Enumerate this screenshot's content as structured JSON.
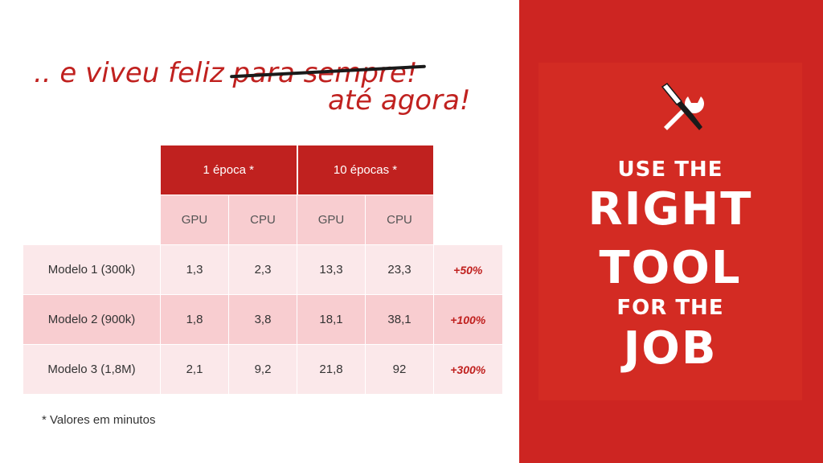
{
  "title": {
    "prefix": ".. e viveu feliz ",
    "struck": "para sempre!",
    "line2": "até agora!"
  },
  "table": {
    "header_groups": [
      "1 época *",
      "10 épocas *"
    ],
    "subheaders": [
      "GPU",
      "CPU",
      "GPU",
      "CPU"
    ],
    "rows": [
      {
        "label": "Modelo 1 (300k)",
        "values": [
          "1,3",
          "2,3",
          "13,3",
          "23,3"
        ],
        "increase": "+50%"
      },
      {
        "label": "Modelo 2 (900k)",
        "values": [
          "1,8",
          "3,8",
          "18,1",
          "38,1"
        ],
        "increase": "+100%"
      },
      {
        "label": "Modelo 3 (1,8M)",
        "values": [
          "2,1",
          "9,2",
          "21,8",
          "92"
        ],
        "increase": "+300%"
      }
    ]
  },
  "footnote": "* Valores em minutos",
  "poster": {
    "icon": "wrench-screwdriver-icon",
    "line1": "USE THE",
    "line2": "RIGHT",
    "line3": "TOOL",
    "line4": "FOR THE",
    "line5": "JOB",
    "color": "#cd2522"
  },
  "colors": {
    "accent": "#c0211f",
    "row_light": "#fbe8ea",
    "row_dark": "#f8cdd0"
  }
}
